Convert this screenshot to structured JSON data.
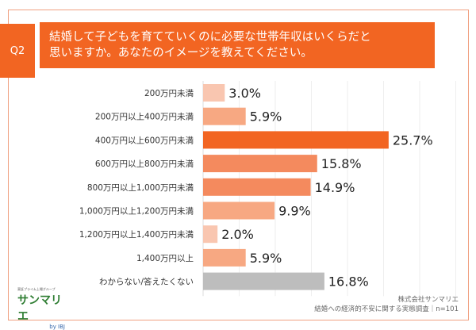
{
  "question": {
    "label": "Q2",
    "text_line1": "結婚して子どもを育てていくのに必要な世帯年収はいくらだと",
    "text_line2": "思いますか。あなたのイメージを教えてください。"
  },
  "logo": {
    "tagline": "東証プライム上場グループ",
    "name": "サンマリエ",
    "by": "by IBJ"
  },
  "source": {
    "company": "株式会社サンマリエ",
    "survey": "結婚への経済的不安に関する実態調査｜n=101"
  },
  "chart_data": {
    "type": "bar",
    "orientation": "horizontal",
    "grid": true,
    "categories": [
      "200万円未満",
      "200万円以上400万円未満",
      "400万円以上600万円未満",
      "600万円以上800万円未満",
      "800万円以上1,000万円未満",
      "1,000万円以上1,200万円未満",
      "1,200万円以上1,400万円未満",
      "1,400万円以上",
      "わからない/答えたくない"
    ],
    "values": [
      3.0,
      5.9,
      25.7,
      15.8,
      14.9,
      9.9,
      2.0,
      5.9,
      16.8
    ],
    "value_labels": [
      "3.0%",
      "5.9%",
      "25.7%",
      "15.8%",
      "14.9%",
      "9.9%",
      "2.0%",
      "5.9%",
      "16.8%"
    ],
    "colors": [
      "#f9c6b0",
      "#f7a882",
      "#f26522",
      "#f48a5e",
      "#f48a5e",
      "#f7a882",
      "#f9c6b0",
      "#f7a882",
      "#bdbdbd"
    ],
    "xlim": [
      0,
      35
    ]
  }
}
